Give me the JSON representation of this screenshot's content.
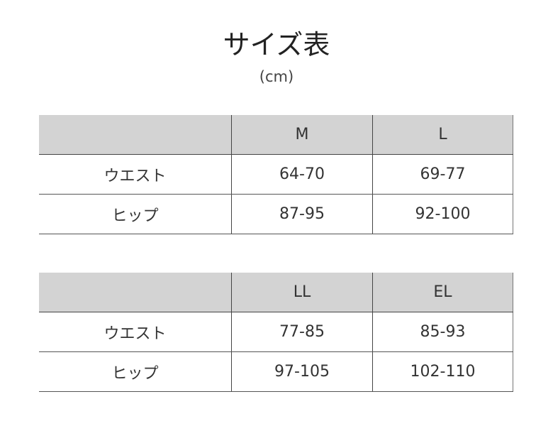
{
  "title": "サイズ表",
  "unit": "(cm)",
  "tables": [
    {
      "headers": [
        "",
        "M",
        "L"
      ],
      "rows": [
        {
          "label": "ウエスト",
          "values": [
            "64-70",
            "69-77"
          ]
        },
        {
          "label": "ヒップ",
          "values": [
            "87-95",
            "92-100"
          ]
        }
      ]
    },
    {
      "headers": [
        "",
        "LL",
        "EL"
      ],
      "rows": [
        {
          "label": "ウエスト",
          "values": [
            "77-85",
            "85-93"
          ]
        },
        {
          "label": "ヒップ",
          "values": [
            "97-105",
            "102-110"
          ]
        }
      ]
    }
  ],
  "colors": {
    "header_bg": "#d3d3d3",
    "border": "#444444"
  }
}
